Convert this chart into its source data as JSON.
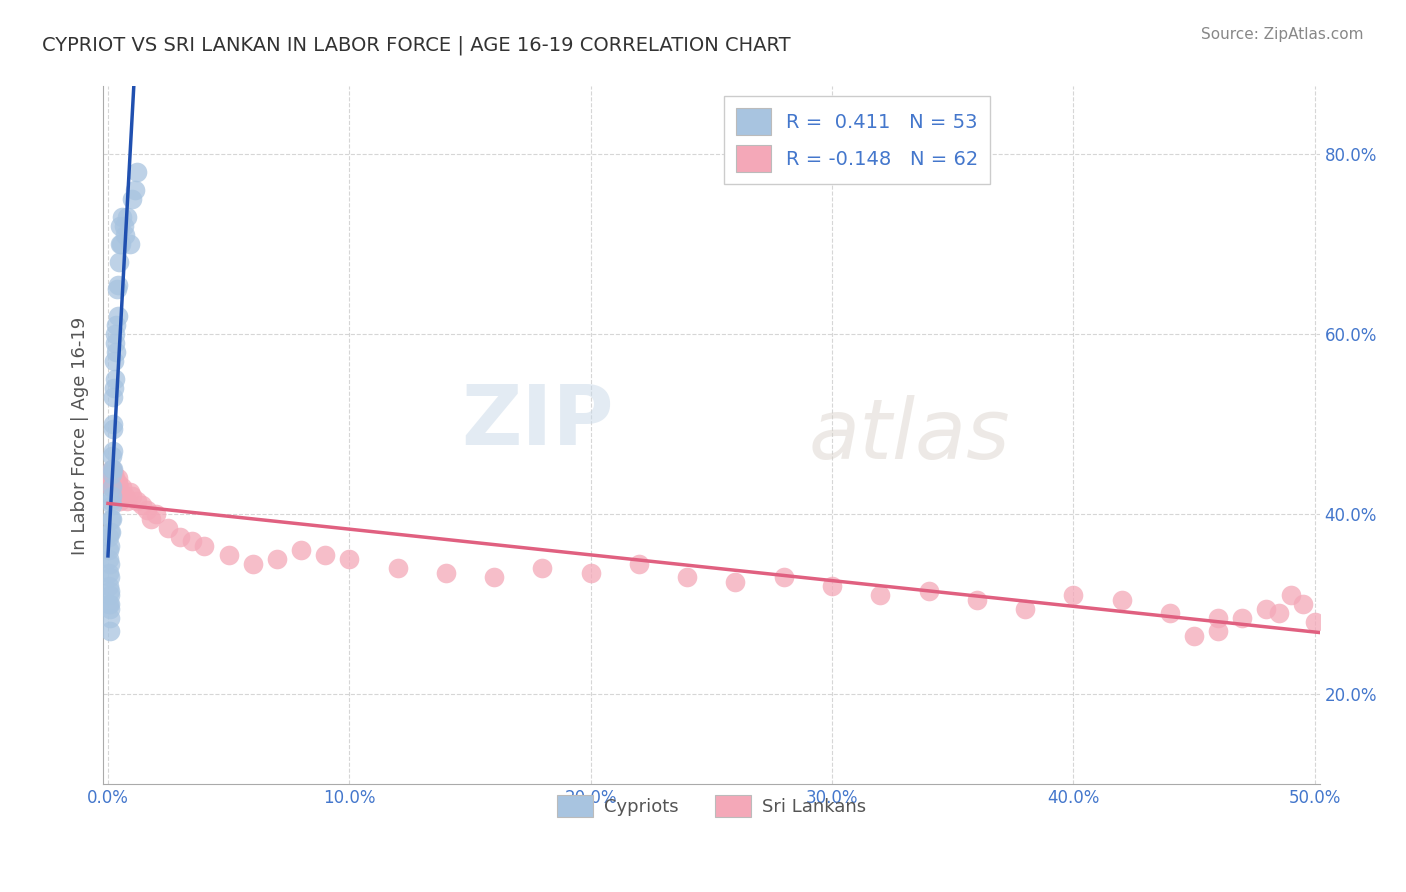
{
  "title": "CYPRIOT VS SRI LANKAN IN LABOR FORCE | AGE 16-19 CORRELATION CHART",
  "source_text": "Source: ZipAtlas.com",
  "ylabel": "In Labor Force | Age 16-19",
  "xlim": [
    -0.002,
    0.502
  ],
  "ylim": [
    0.1,
    0.875
  ],
  "xticks": [
    0.0,
    0.1,
    0.2,
    0.3,
    0.4,
    0.5
  ],
  "xticklabels": [
    "0.0%",
    "10.0%",
    "20.0%",
    "30.0%",
    "40.0%",
    "50.0%"
  ],
  "yticks": [
    0.2,
    0.4,
    0.6,
    0.8
  ],
  "yticklabels": [
    "20.0%",
    "40.0%",
    "60.0%",
    "80.0%"
  ],
  "grid_color": "#cccccc",
  "background_color": "#ffffff",
  "cypriot_color": "#a8c4e0",
  "srilanka_color": "#f4a8b8",
  "trend_blue": "#2050b0",
  "trend_pink": "#e06080",
  "legend_R_blue": "0.411",
  "legend_N_blue": "53",
  "legend_R_pink": "-0.148",
  "legend_N_pink": "62",
  "watermark_zip": "ZIP",
  "watermark_atlas": "atlas",
  "cypriot_points_x": [
    0.0005,
    0.0005,
    0.0005,
    0.0005,
    0.0005,
    0.0005,
    0.0008,
    0.0008,
    0.001,
    0.001,
    0.001,
    0.001,
    0.001,
    0.001,
    0.001,
    0.001,
    0.0012,
    0.0012,
    0.0012,
    0.0015,
    0.0015,
    0.0015,
    0.0015,
    0.0018,
    0.0018,
    0.0018,
    0.002,
    0.002,
    0.002,
    0.0022,
    0.0022,
    0.0025,
    0.0025,
    0.0028,
    0.003,
    0.003,
    0.0032,
    0.0035,
    0.0038,
    0.004,
    0.0042,
    0.0045,
    0.0048,
    0.005,
    0.0055,
    0.006,
    0.0065,
    0.007,
    0.008,
    0.009,
    0.01,
    0.011,
    0.012
  ],
  "cypriot_points_y": [
    0.3,
    0.32,
    0.335,
    0.35,
    0.36,
    0.375,
    0.31,
    0.295,
    0.27,
    0.285,
    0.3,
    0.315,
    0.33,
    0.345,
    0.365,
    0.38,
    0.38,
    0.395,
    0.415,
    0.395,
    0.41,
    0.43,
    0.45,
    0.42,
    0.445,
    0.465,
    0.45,
    0.47,
    0.495,
    0.5,
    0.53,
    0.54,
    0.57,
    0.59,
    0.55,
    0.6,
    0.58,
    0.61,
    0.65,
    0.62,
    0.655,
    0.68,
    0.7,
    0.72,
    0.7,
    0.73,
    0.72,
    0.71,
    0.73,
    0.7,
    0.75,
    0.76,
    0.78
  ],
  "srilanka_points_x": [
    0.0005,
    0.0008,
    0.001,
    0.0012,
    0.0015,
    0.0018,
    0.002,
    0.0025,
    0.003,
    0.0035,
    0.0038,
    0.004,
    0.0042,
    0.0045,
    0.0048,
    0.005,
    0.006,
    0.007,
    0.008,
    0.009,
    0.01,
    0.012,
    0.014,
    0.016,
    0.018,
    0.02,
    0.025,
    0.03,
    0.035,
    0.04,
    0.05,
    0.06,
    0.07,
    0.08,
    0.09,
    0.1,
    0.12,
    0.14,
    0.16,
    0.18,
    0.2,
    0.22,
    0.24,
    0.26,
    0.28,
    0.3,
    0.32,
    0.34,
    0.36,
    0.38,
    0.4,
    0.42,
    0.44,
    0.46,
    0.48,
    0.5,
    0.49,
    0.495,
    0.485,
    0.47,
    0.46,
    0.45
  ],
  "srilanka_points_y": [
    0.44,
    0.435,
    0.445,
    0.43,
    0.45,
    0.44,
    0.435,
    0.445,
    0.44,
    0.43,
    0.425,
    0.435,
    0.44,
    0.43,
    0.425,
    0.415,
    0.43,
    0.42,
    0.415,
    0.425,
    0.42,
    0.415,
    0.41,
    0.405,
    0.395,
    0.4,
    0.385,
    0.375,
    0.37,
    0.365,
    0.355,
    0.345,
    0.35,
    0.36,
    0.355,
    0.35,
    0.34,
    0.335,
    0.33,
    0.34,
    0.335,
    0.345,
    0.33,
    0.325,
    0.33,
    0.32,
    0.31,
    0.315,
    0.305,
    0.295,
    0.31,
    0.305,
    0.29,
    0.285,
    0.295,
    0.28,
    0.31,
    0.3,
    0.29,
    0.285,
    0.27,
    0.265
  ]
}
